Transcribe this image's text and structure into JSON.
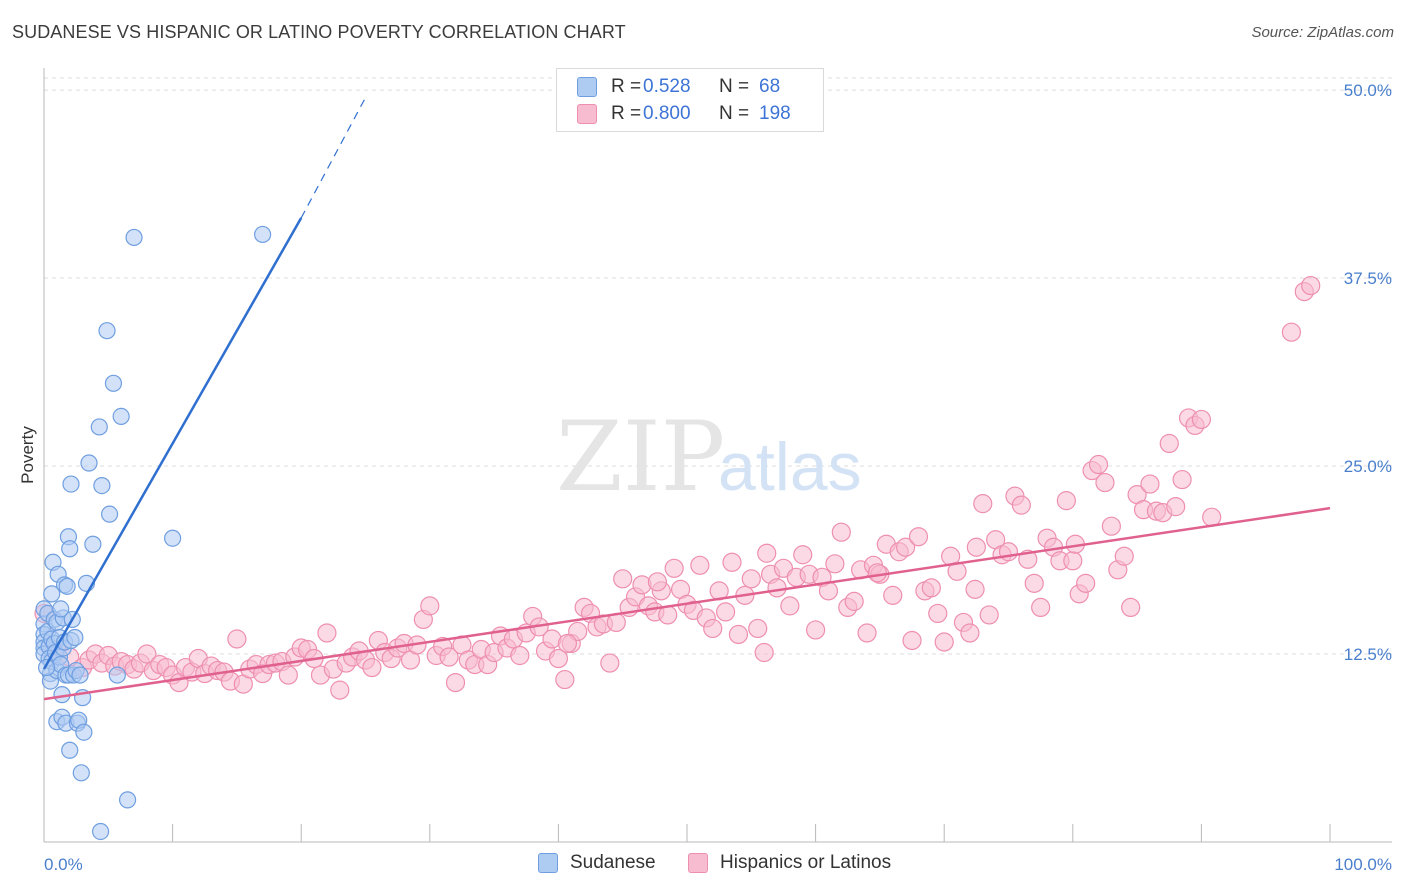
{
  "title": "SUDANESE VS HISPANIC OR LATINO POVERTY CORRELATION CHART",
  "source": "Source: ZipAtlas.com",
  "watermark": {
    "zip": "ZIP",
    "atlas": "atlas"
  },
  "colors": {
    "sudanese_fill": "#aecbf2",
    "sudanese_stroke": "#6f9fe0",
    "sudanese_line": "#2f6fd0",
    "hispanic_fill": "#f7bcd0",
    "hispanic_stroke": "#ee8fb0",
    "hispanic_line": "#e0618e",
    "tick_text": "#4a7fcc",
    "grid": "#dcdcdc"
  },
  "legend": {
    "rows": [
      {
        "r_label": "R =",
        "r_value": "0.528",
        "n_label": "N =",
        "n_value": "68"
      },
      {
        "r_label": "R =",
        "r_value": "0.800",
        "n_label": "N =",
        "n_value": "198"
      }
    ]
  },
  "bottom_legend": {
    "sudanese": "Sudanese",
    "hispanic": "Hispanics or Latinos"
  },
  "chart_data": {
    "type": "scatter",
    "title": "SUDANESE VS HISPANIC OR LATINO POVERTY CORRELATION CHART",
    "xlabel": "",
    "ylabel": "Poverty",
    "xlim": [
      0,
      100
    ],
    "ylim": [
      0,
      52
    ],
    "x_tick_labels": [
      "0.0%",
      "100.0%"
    ],
    "y_ticks": [
      12.5,
      25.0,
      37.5,
      50.0
    ],
    "y_tick_labels": [
      "12.5%",
      "25.0%",
      "37.5%",
      "50.0%"
    ],
    "grid": "horizontal dashed",
    "legend_position": "top-center",
    "series": [
      {
        "name": "Sudanese",
        "R": 0.528,
        "N": 68,
        "trend": {
          "x0": 0,
          "y0": 11.5,
          "x1": 20,
          "y1": 41.5,
          "dashed_to_x": 25,
          "dashed_to_y": 49.5
        },
        "points": [
          [
            0,
            15.5
          ],
          [
            0,
            14.5
          ],
          [
            0,
            13.8
          ],
          [
            0,
            13.3
          ],
          [
            0,
            12.9
          ],
          [
            0,
            12.5
          ],
          [
            0.3,
            15.2
          ],
          [
            0.3,
            14
          ],
          [
            0.4,
            13
          ],
          [
            0.4,
            12.2
          ],
          [
            0.5,
            11.2
          ],
          [
            0.5,
            10.7
          ],
          [
            0.6,
            13.5
          ],
          [
            0.6,
            12
          ],
          [
            0.7,
            18.6
          ],
          [
            0.8,
            14.8
          ],
          [
            0.8,
            13.2
          ],
          [
            0.9,
            12.6
          ],
          [
            1,
            8
          ],
          [
            1,
            11.4
          ],
          [
            1,
            14.6
          ],
          [
            1.1,
            17.8
          ],
          [
            1.2,
            13.6
          ],
          [
            1.2,
            12.3
          ],
          [
            1.3,
            11.8
          ],
          [
            1.4,
            9.8
          ],
          [
            1.4,
            8.3
          ],
          [
            1.5,
            14.9
          ],
          [
            1.5,
            12.9
          ],
          [
            1.6,
            17.1
          ],
          [
            1.6,
            13.3
          ],
          [
            1.7,
            11.1
          ],
          [
            1.7,
            7.9
          ],
          [
            1.8,
            17
          ],
          [
            1.9,
            20.3
          ],
          [
            1.9,
            11.1
          ],
          [
            2,
            19.5
          ],
          [
            2,
            6.1
          ],
          [
            2.1,
            23.8
          ],
          [
            2.1,
            13.4
          ],
          [
            2.2,
            14.8
          ],
          [
            2.3,
            11.1
          ],
          [
            2.4,
            13.6
          ],
          [
            2.5,
            11.4
          ],
          [
            2.6,
            7.9
          ],
          [
            2.7,
            8.1
          ],
          [
            2.8,
            11.1
          ],
          [
            2.9,
            4.6
          ],
          [
            3,
            9.6
          ],
          [
            3.1,
            7.3
          ],
          [
            3.3,
            17.2
          ],
          [
            3.5,
            25.2
          ],
          [
            3.8,
            19.8
          ],
          [
            4.3,
            27.6
          ],
          [
            4.5,
            23.7
          ],
          [
            4.9,
            34
          ],
          [
            5.1,
            21.8
          ],
          [
            5.4,
            30.5
          ],
          [
            5.7,
            11.1
          ],
          [
            6,
            28.3
          ],
          [
            6.5,
            2.8
          ],
          [
            7,
            40.2
          ],
          [
            10,
            20.2
          ],
          [
            17,
            40.4
          ],
          [
            4.4,
            0.7
          ],
          [
            0.2,
            11.6
          ],
          [
            0.6,
            16.5
          ],
          [
            1.3,
            15.5
          ]
        ]
      },
      {
        "name": "Hispanics or Latinos",
        "R": 0.8,
        "N": 198,
        "trend": {
          "x0": 0,
          "y0": 9.5,
          "x1": 100,
          "y1": 22.2
        },
        "points": [
          [
            0,
            15.2
          ],
          [
            1,
            12.8
          ],
          [
            2,
            12.3
          ],
          [
            3,
            11.6
          ],
          [
            3.5,
            12.1
          ],
          [
            4,
            12.5
          ],
          [
            4.5,
            11.9
          ],
          [
            5,
            12.4
          ],
          [
            5.5,
            11.7
          ],
          [
            6,
            12
          ],
          [
            6.5,
            11.8
          ],
          [
            7,
            11.5
          ],
          [
            7.5,
            11.9
          ],
          [
            8,
            12.5
          ],
          [
            8.5,
            11.4
          ],
          [
            9,
            11.8
          ],
          [
            9.5,
            11.6
          ],
          [
            10,
            11.1
          ],
          [
            10.5,
            10.6
          ],
          [
            11,
            11.6
          ],
          [
            11.5,
            11.3
          ],
          [
            12,
            12.2
          ],
          [
            12.5,
            11.2
          ],
          [
            13,
            11.7
          ],
          [
            13.5,
            11.4
          ],
          [
            14,
            11.3
          ],
          [
            14.5,
            10.7
          ],
          [
            15,
            13.5
          ],
          [
            15.5,
            10.5
          ],
          [
            16,
            11.5
          ],
          [
            16.5,
            11.8
          ],
          [
            17,
            11.2
          ],
          [
            17.5,
            11.8
          ],
          [
            18,
            11.9
          ],
          [
            18.5,
            12
          ],
          [
            19,
            11.1
          ],
          [
            19.5,
            12.3
          ],
          [
            20,
            12.9
          ],
          [
            20.5,
            12.8
          ],
          [
            21,
            12.2
          ],
          [
            21.5,
            11.1
          ],
          [
            22,
            13.9
          ],
          [
            22.5,
            11.5
          ],
          [
            23,
            10.1
          ],
          [
            23.5,
            11.9
          ],
          [
            24,
            12.3
          ],
          [
            24.5,
            12.7
          ],
          [
            25,
            12.1
          ],
          [
            25.5,
            11.6
          ],
          [
            26,
            13.4
          ],
          [
            26.5,
            12.6
          ],
          [
            27,
            12.2
          ],
          [
            27.5,
            12.9
          ],
          [
            28,
            13.2
          ],
          [
            28.5,
            12.1
          ],
          [
            29,
            13.1
          ],
          [
            29.5,
            14.8
          ],
          [
            30,
            15.7
          ],
          [
            30.5,
            12.4
          ],
          [
            31,
            13
          ],
          [
            31.5,
            12.3
          ],
          [
            32,
            10.6
          ],
          [
            32.5,
            13.1
          ],
          [
            33,
            12.1
          ],
          [
            33.5,
            11.8
          ],
          [
            34,
            12.8
          ],
          [
            34.5,
            11.8
          ],
          [
            35,
            12.6
          ],
          [
            35.5,
            13.7
          ],
          [
            36,
            12.9
          ],
          [
            36.5,
            13.5
          ],
          [
            37,
            12.4
          ],
          [
            37.5,
            13.9
          ],
          [
            38,
            15
          ],
          [
            38.5,
            14.3
          ],
          [
            39,
            12.7
          ],
          [
            39.5,
            13.5
          ],
          [
            40,
            12.2
          ],
          [
            40.5,
            10.8
          ],
          [
            41,
            13.2
          ],
          [
            41.5,
            14
          ],
          [
            42,
            15.6
          ],
          [
            42.5,
            15.2
          ],
          [
            43,
            14.3
          ],
          [
            43.5,
            14.5
          ],
          [
            44,
            11.9
          ],
          [
            44.5,
            14.6
          ],
          [
            45,
            17.5
          ],
          [
            45.5,
            15.6
          ],
          [
            46,
            16.3
          ],
          [
            46.5,
            17.1
          ],
          [
            47,
            15.7
          ],
          [
            47.5,
            15.3
          ],
          [
            48,
            16.7
          ],
          [
            48.5,
            15.1
          ],
          [
            49,
            18.2
          ],
          [
            49.5,
            16.8
          ],
          [
            50,
            15.8
          ],
          [
            50.5,
            15.4
          ],
          [
            51,
            18.4
          ],
          [
            51.5,
            14.9
          ],
          [
            52,
            14.2
          ],
          [
            52.5,
            16.7
          ],
          [
            53,
            15.3
          ],
          [
            53.5,
            18.6
          ],
          [
            54,
            13.8
          ],
          [
            54.5,
            16.4
          ],
          [
            55,
            17.5
          ],
          [
            55.5,
            14.2
          ],
          [
            56,
            12.6
          ],
          [
            56.5,
            17.8
          ],
          [
            57,
            16.9
          ],
          [
            57.5,
            18.2
          ],
          [
            58,
            15.7
          ],
          [
            58.5,
            17.6
          ],
          [
            59,
            19.1
          ],
          [
            59.5,
            17.8
          ],
          [
            60,
            14.1
          ],
          [
            60.5,
            17.6
          ],
          [
            61,
            16.7
          ],
          [
            61.5,
            18.5
          ],
          [
            62,
            20.6
          ],
          [
            62.5,
            15.6
          ],
          [
            63,
            16
          ],
          [
            63.5,
            18.1
          ],
          [
            64,
            13.9
          ],
          [
            64.5,
            18.4
          ],
          [
            65,
            17.8
          ],
          [
            65.5,
            19.8
          ],
          [
            66,
            16.4
          ],
          [
            66.5,
            19.3
          ],
          [
            67,
            19.6
          ],
          [
            67.5,
            13.4
          ],
          [
            68,
            20.3
          ],
          [
            68.5,
            16.7
          ],
          [
            69,
            16.9
          ],
          [
            69.5,
            15.2
          ],
          [
            70,
            13.3
          ],
          [
            70.5,
            19
          ],
          [
            71,
            18
          ],
          [
            71.5,
            14.6
          ],
          [
            72,
            13.9
          ],
          [
            72.5,
            19.6
          ],
          [
            73,
            22.5
          ],
          [
            73.5,
            15.1
          ],
          [
            74,
            20.1
          ],
          [
            74.5,
            19.1
          ],
          [
            75,
            19.3
          ],
          [
            75.5,
            23
          ],
          [
            76,
            22.4
          ],
          [
            76.5,
            18.8
          ],
          [
            77,
            17.2
          ],
          [
            77.5,
            15.6
          ],
          [
            78,
            20.2
          ],
          [
            78.5,
            19.6
          ],
          [
            79,
            18.7
          ],
          [
            79.5,
            22.7
          ],
          [
            80,
            18.7
          ],
          [
            80.5,
            16.5
          ],
          [
            81,
            17.2
          ],
          [
            81.5,
            24.7
          ],
          [
            82,
            25.1
          ],
          [
            82.5,
            23.9
          ],
          [
            83,
            21
          ],
          [
            83.5,
            18.1
          ],
          [
            84,
            19
          ],
          [
            84.5,
            15.6
          ],
          [
            85,
            23.1
          ],
          [
            85.5,
            22.1
          ],
          [
            86,
            23.8
          ],
          [
            86.5,
            22
          ],
          [
            87,
            21.9
          ],
          [
            87.5,
            26.5
          ],
          [
            88,
            22.3
          ],
          [
            88.5,
            24.1
          ],
          [
            89,
            28.2
          ],
          [
            89.5,
            27.7
          ],
          [
            90,
            28.1
          ],
          [
            97,
            33.9
          ],
          [
            98,
            36.6
          ],
          [
            98.5,
            37
          ],
          [
            40.7,
            13.2
          ],
          [
            47.7,
            17.3
          ],
          [
            56.2,
            19.2
          ],
          [
            64.8,
            17.9
          ],
          [
            72.4,
            16.8
          ],
          [
            80.2,
            19.8
          ],
          [
            90.8,
            21.6
          ]
        ]
      }
    ]
  }
}
